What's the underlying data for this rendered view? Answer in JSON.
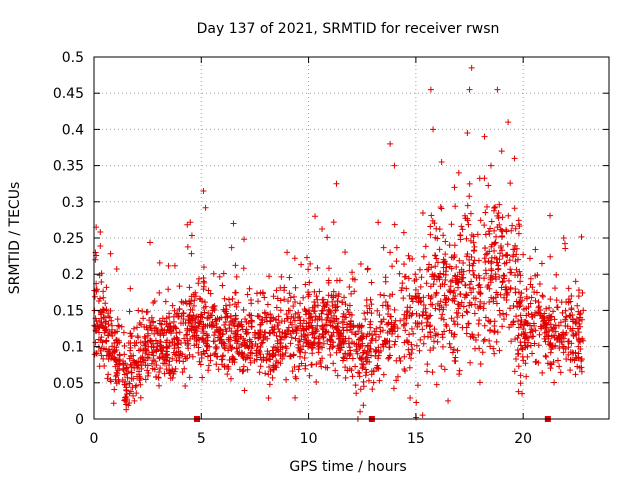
{
  "chart_data": {
    "type": "scatter",
    "title": "Day 137 of 2021, SRMTID for receiver rwsn",
    "xlabel": "GPS time / hours",
    "ylabel": "SRMTID / TECUs",
    "xlim": [
      0,
      24
    ],
    "ylim": [
      0,
      0.5
    ],
    "grid": true,
    "marker": "plus",
    "series_color": "#e00000",
    "x_ticks": [
      0,
      5,
      10,
      15,
      20
    ],
    "x_tick_labels": [
      "0",
      "5",
      "10",
      "15",
      "20"
    ],
    "y_ticks": [
      0,
      0.05,
      0.1,
      0.15,
      0.2,
      0.25,
      0.3,
      0.35,
      0.4,
      0.45,
      0.5
    ],
    "y_tick_labels": [
      "0",
      "0.05",
      "0.1",
      "0.15",
      "0.2",
      "0.25",
      "0.3",
      "0.35",
      "0.4",
      "0.45",
      "0.5"
    ],
    "zero_markers_x": [
      4.8,
      12.95,
      21.15
    ],
    "trend": [
      {
        "x": 0.0,
        "y": 0.15
      },
      {
        "x": 0.5,
        "y": 0.12
      },
      {
        "x": 1.0,
        "y": 0.09
      },
      {
        "x": 1.5,
        "y": 0.07
      },
      {
        "x": 2.0,
        "y": 0.08
      },
      {
        "x": 2.5,
        "y": 0.1
      },
      {
        "x": 3.0,
        "y": 0.1
      },
      {
        "x": 4.0,
        "y": 0.12
      },
      {
        "x": 5.0,
        "y": 0.13
      },
      {
        "x": 6.0,
        "y": 0.12
      },
      {
        "x": 7.0,
        "y": 0.11
      },
      {
        "x": 8.0,
        "y": 0.11
      },
      {
        "x": 9.0,
        "y": 0.12
      },
      {
        "x": 10.0,
        "y": 0.12
      },
      {
        "x": 11.0,
        "y": 0.13
      },
      {
        "x": 12.0,
        "y": 0.12
      },
      {
        "x": 12.5,
        "y": 0.09
      },
      {
        "x": 13.0,
        "y": 0.1
      },
      {
        "x": 14.0,
        "y": 0.13
      },
      {
        "x": 15.0,
        "y": 0.15
      },
      {
        "x": 16.0,
        "y": 0.17
      },
      {
        "x": 17.0,
        "y": 0.18
      },
      {
        "x": 18.0,
        "y": 0.19
      },
      {
        "x": 19.0,
        "y": 0.2
      },
      {
        "x": 19.5,
        "y": 0.19
      },
      {
        "x": 20.0,
        "y": 0.13
      },
      {
        "x": 21.0,
        "y": 0.12
      },
      {
        "x": 22.0,
        "y": 0.12
      },
      {
        "x": 22.8,
        "y": 0.11
      }
    ],
    "outliers": [
      {
        "x": 5.1,
        "y": 0.315
      },
      {
        "x": 11.3,
        "y": 0.325
      },
      {
        "x": 13.8,
        "y": 0.38
      },
      {
        "x": 15.7,
        "y": 0.455
      },
      {
        "x": 15.8,
        "y": 0.4
      },
      {
        "x": 17.6,
        "y": 0.485
      },
      {
        "x": 17.5,
        "y": 0.455
      },
      {
        "x": 17.4,
        "y": 0.395
      },
      {
        "x": 18.8,
        "y": 0.455
      },
      {
        "x": 19.3,
        "y": 0.41
      },
      {
        "x": 16.2,
        "y": 0.355
      },
      {
        "x": 14.0,
        "y": 0.35
      },
      {
        "x": 18.2,
        "y": 0.39
      },
      {
        "x": 19.0,
        "y": 0.37
      },
      {
        "x": 19.6,
        "y": 0.36
      },
      {
        "x": 17.0,
        "y": 0.34
      },
      {
        "x": 18.5,
        "y": 0.35
      },
      {
        "x": 16.8,
        "y": 0.32
      },
      {
        "x": 10.3,
        "y": 0.28
      },
      {
        "x": 6.5,
        "y": 0.27
      },
      {
        "x": 0.1,
        "y": 0.265
      },
      {
        "x": 12.3,
        "y": 0.0
      },
      {
        "x": 12.4,
        "y": 0.01
      },
      {
        "x": 1.5,
        "y": 0.02
      },
      {
        "x": 16.5,
        "y": 0.025
      }
    ]
  }
}
